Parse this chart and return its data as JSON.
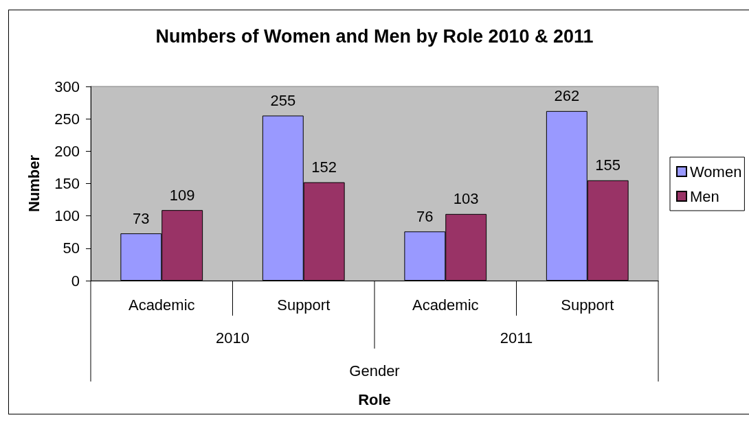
{
  "chart_data": {
    "type": "bar",
    "title": "Numbers of Women and Men by Role 2010 & 2011",
    "ylabel": "Number",
    "categories": [
      "Academic",
      "Support",
      "Academic",
      "Support"
    ],
    "series": [
      {
        "name": "Women",
        "color": "#9999ff",
        "values": [
          73,
          255,
          76,
          262
        ]
      },
      {
        "name": "Men",
        "color": "#993366",
        "values": [
          109,
          152,
          103,
          155
        ]
      }
    ],
    "annotations": [
      "2010",
      "2011",
      "Gender",
      "Role"
    ],
    "ylim": [
      0,
      300
    ],
    "yticks": [
      0,
      50,
      100,
      150,
      200,
      250,
      300
    ],
    "data_labels": true,
    "legend": "right"
  }
}
